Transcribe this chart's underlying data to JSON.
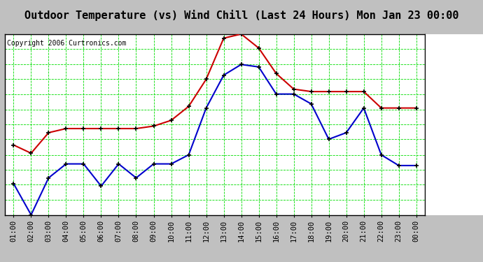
{
  "title": "Outdoor Temperature (vs) Wind Chill (Last 24 Hours) Mon Jan 23 00:00",
  "copyright_text": "Copyright 2006 Curtronics.com",
  "x_labels": [
    "01:00",
    "02:00",
    "03:00",
    "04:00",
    "05:00",
    "06:00",
    "07:00",
    "08:00",
    "09:00",
    "10:00",
    "11:00",
    "12:00",
    "13:00",
    "14:00",
    "15:00",
    "16:00",
    "17:00",
    "18:00",
    "19:00",
    "20:00",
    "21:00",
    "22:00",
    "23:00",
    "00:00"
  ],
  "red_data": [
    23.5,
    22.5,
    25.0,
    25.5,
    25.5,
    25.5,
    25.5,
    25.5,
    25.8,
    26.5,
    28.2,
    31.5,
    36.5,
    37.0,
    35.3,
    32.2,
    30.3,
    30.0,
    30.0,
    30.0,
    30.0,
    28.0,
    28.0,
    28.0
  ],
  "blue_data": [
    18.8,
    15.0,
    19.5,
    21.2,
    21.2,
    18.5,
    21.2,
    19.5,
    21.2,
    21.2,
    22.3,
    28.0,
    32.0,
    33.3,
    33.0,
    29.7,
    29.7,
    28.5,
    24.2,
    25.0,
    28.0,
    22.3,
    21.0,
    21.0
  ],
  "red_color": "#cc0000",
  "blue_color": "#0000cc",
  "marker_color": "#000000",
  "background_color": "#c0c0c0",
  "grid_color": "#00dd00",
  "title_bg": "#c0c0c0",
  "plot_bg": "#ffffff",
  "ylim": [
    15.0,
    37.0
  ],
  "yticks": [
    15.0,
    16.8,
    18.7,
    20.5,
    22.3,
    24.2,
    26.0,
    27.8,
    29.7,
    31.5,
    33.3,
    35.2,
    37.0
  ],
  "title_fontsize": 11,
  "tick_fontsize": 7.5,
  "copyright_fontsize": 7
}
